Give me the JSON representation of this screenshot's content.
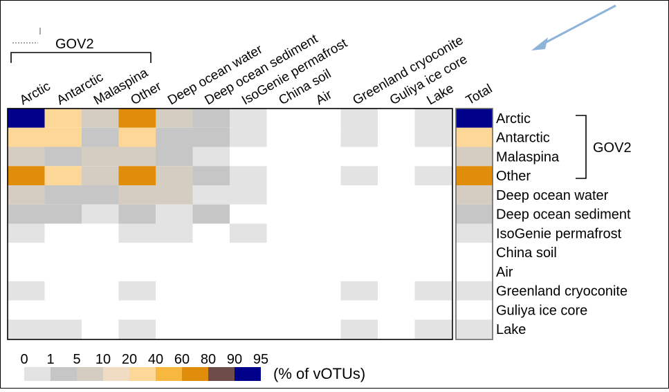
{
  "chart_data": {
    "type": "heatmap",
    "group_label": "GOV2",
    "group_members": [
      "Arctic",
      "Antarctic",
      "Malaspina",
      "Other"
    ],
    "columns": [
      "Arctic",
      "Antarctic",
      "Malaspina",
      "Other",
      "Deep ocean water",
      "Deep ocean sediment",
      "IsoGenie permafrost",
      "China soil",
      "Air",
      "Greenland cryoconite",
      "Guliya ice core",
      "Lake"
    ],
    "rows": [
      "Arctic",
      "Antarctic",
      "Malaspina",
      "Other",
      "Deep ocean water",
      "Deep ocean sediment",
      "IsoGenie permafrost",
      "China soil",
      "Air",
      "Greenland cryoconite",
      "Guliya ice core",
      "Lake"
    ],
    "total_label": "Total",
    "matrix_level": [
      [
        8,
        4,
        2,
        6,
        2,
        1,
        0,
        -1,
        -1,
        0,
        -1,
        0
      ],
      [
        4,
        4,
        1,
        4,
        1,
        1,
        0,
        -1,
        -1,
        0,
        -1,
        0
      ],
      [
        2,
        1,
        2,
        2,
        1,
        0,
        -1,
        -1,
        -1,
        -1,
        -1,
        -1
      ],
      [
        6,
        4,
        2,
        6,
        2,
        1,
        0,
        -1,
        -1,
        0,
        -1,
        0
      ],
      [
        2,
        1,
        1,
        2,
        2,
        0,
        0,
        -1,
        -1,
        -1,
        -1,
        -1
      ],
      [
        1,
        1,
        0,
        1,
        0,
        1,
        -1,
        -1,
        -1,
        -1,
        -1,
        -1
      ],
      [
        0,
        -1,
        -1,
        0,
        0,
        -1,
        0,
        -1,
        -1,
        -1,
        -1,
        -1
      ],
      [
        -1,
        -1,
        -1,
        -1,
        -1,
        -1,
        -1,
        -1,
        -1,
        -1,
        -1,
        -1
      ],
      [
        -1,
        -1,
        -1,
        -1,
        -1,
        -1,
        -1,
        -1,
        -1,
        -1,
        -1,
        -1
      ],
      [
        0,
        -1,
        -1,
        0,
        -1,
        -1,
        -1,
        -1,
        -1,
        0,
        -1,
        0
      ],
      [
        -1,
        -1,
        -1,
        -1,
        -1,
        -1,
        -1,
        -1,
        -1,
        -1,
        -1,
        -1
      ],
      [
        0,
        0,
        -1,
        0,
        -1,
        -1,
        -1,
        -1,
        -1,
        0,
        -1,
        0
      ]
    ],
    "total_level": [
      8,
      4,
      2,
      6,
      2,
      1,
      0,
      -1,
      -1,
      0,
      -1,
      0
    ],
    "scale_ticks": [
      "0",
      "1",
      "5",
      "10",
      "20",
      "40",
      "60",
      "80",
      "90",
      "95"
    ],
    "scale_colors": [
      "#e3e3e3",
      "#c6c6c6",
      "#d5cdc2",
      "#f0dcc2",
      "#fdd797",
      "#f8b83f",
      "#e08d0c",
      "#6e4c49",
      "#00008b"
    ],
    "scale_unit": "(% of vOTUs)",
    "arrow_color": "#8eb3d9"
  }
}
